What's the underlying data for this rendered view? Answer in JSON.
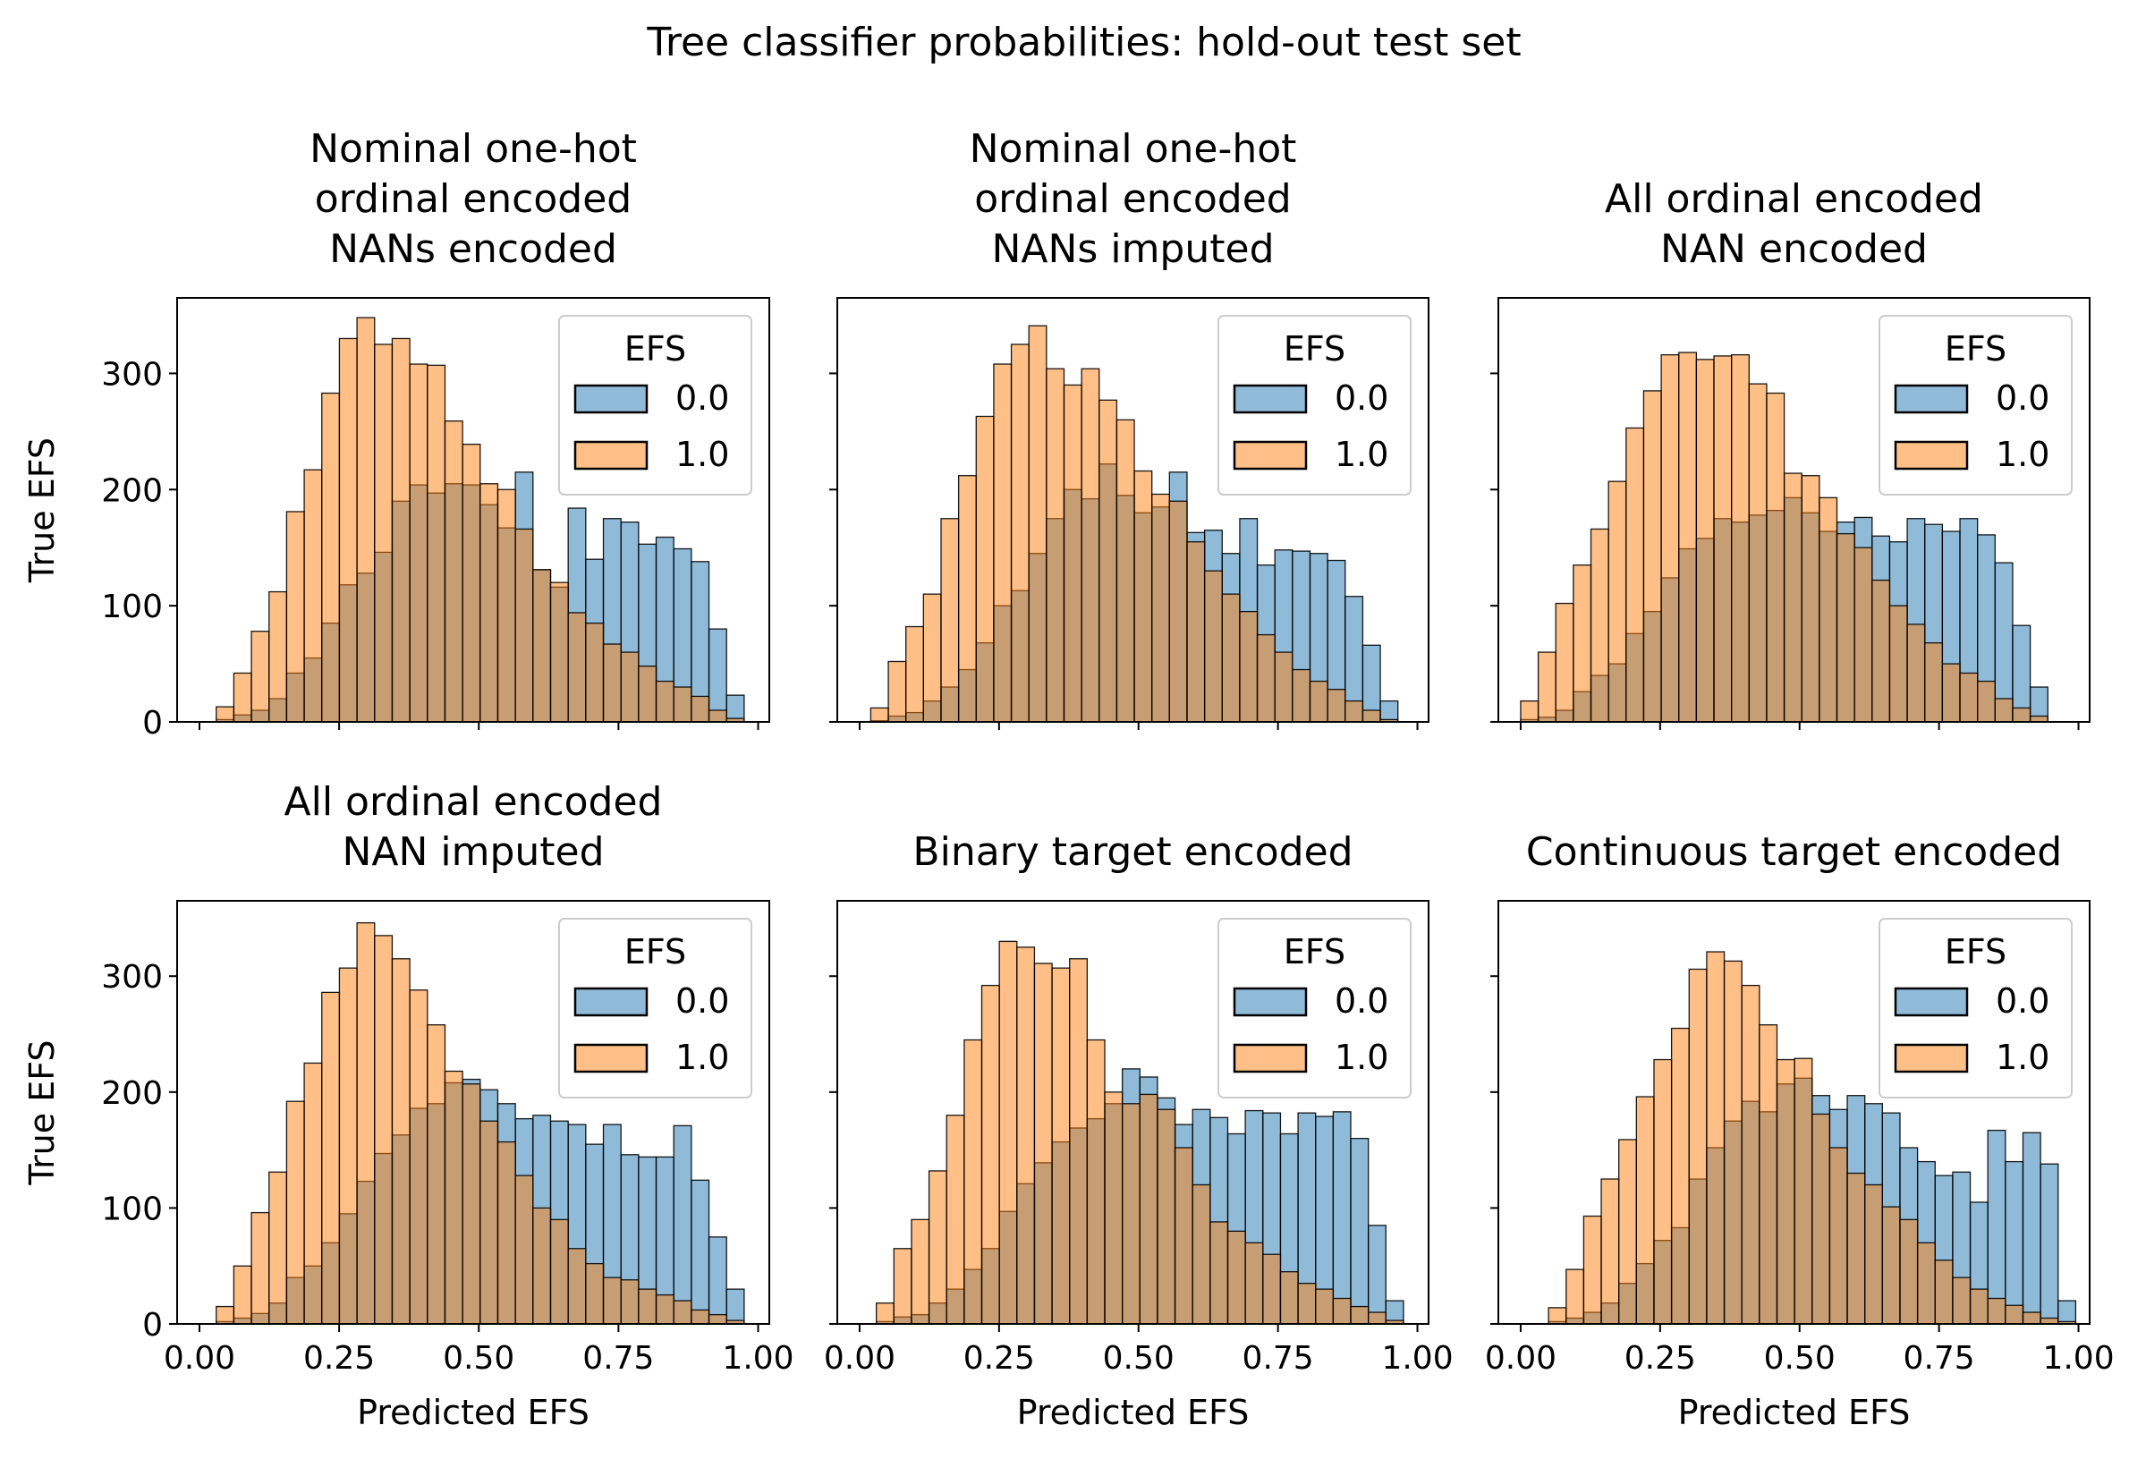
{
  "title": "Tree classifier probabilities: hold-out test set",
  "ylabel": "True EFS",
  "xlabel": "Predicted EFS",
  "legend": {
    "title": "EFS",
    "labels": [
      "0.0",
      "1.0"
    ]
  },
  "colors": {
    "series_0": "#1f77b4",
    "series_1": "#ff7f0e",
    "bar_edge": "#000000"
  },
  "y_ticks": [
    "0",
    "100",
    "200",
    "300"
  ],
  "x_ticks": [
    "0.00",
    "0.25",
    "0.50",
    "0.75",
    "1.00"
  ],
  "chart_data": [
    {
      "type": "bar",
      "title": "Nominal one-hot\nordinal encoded\nNANs encoded",
      "xlabel": "",
      "ylabel": "True EFS",
      "xlim": [
        -0.04,
        1.02
      ],
      "ylim": [
        0,
        365
      ],
      "bin_start": 0.03,
      "bin_width": 0.0315,
      "series": [
        {
          "name": "0.0",
          "values": [
            2,
            6,
            10,
            20,
            42,
            55,
            85,
            118,
            128,
            146,
            190,
            204,
            197,
            205,
            204,
            187,
            167,
            215,
            131,
            116,
            184,
            140,
            175,
            172,
            153,
            159,
            149,
            138,
            80,
            23
          ]
        },
        {
          "name": "1.0",
          "values": [
            13,
            42,
            78,
            112,
            181,
            217,
            283,
            330,
            348,
            325,
            330,
            308,
            307,
            259,
            239,
            205,
            200,
            166,
            131,
            120,
            94,
            85,
            67,
            60,
            48,
            35,
            30,
            22,
            10,
            3
          ]
        }
      ]
    },
    {
      "type": "bar",
      "title": "Nominal one-hot\nordinal encoded\nNANs imputed",
      "xlabel": "",
      "ylabel": "",
      "xlim": [
        -0.04,
        1.02
      ],
      "ylim": [
        0,
        365
      ],
      "bin_start": 0.02,
      "bin_width": 0.0315,
      "series": [
        {
          "name": "0.0",
          "values": [
            1,
            5,
            8,
            18,
            30,
            45,
            68,
            100,
            113,
            145,
            175,
            200,
            192,
            222,
            195,
            180,
            185,
            215,
            163,
            165,
            145,
            175,
            135,
            148,
            147,
            145,
            139,
            108,
            66,
            18
          ]
        },
        {
          "name": "1.0",
          "values": [
            12,
            52,
            82,
            110,
            175,
            212,
            263,
            308,
            325,
            341,
            304,
            290,
            304,
            277,
            260,
            216,
            196,
            190,
            155,
            130,
            110,
            95,
            75,
            60,
            45,
            35,
            28,
            18,
            10,
            2
          ]
        }
      ]
    },
    {
      "type": "bar",
      "title": "All ordinal encoded\nNAN encoded",
      "xlabel": "",
      "ylabel": "",
      "xlim": [
        -0.04,
        1.02
      ],
      "ylim": [
        0,
        365
      ],
      "bin_start": 0.0,
      "bin_width": 0.0315,
      "series": [
        {
          "name": "0.0",
          "values": [
            2,
            4,
            10,
            26,
            40,
            50,
            76,
            95,
            124,
            149,
            158,
            175,
            172,
            178,
            182,
            193,
            180,
            164,
            172,
            176,
            160,
            155,
            175,
            170,
            164,
            175,
            161,
            137,
            83,
            30
          ]
        },
        {
          "name": "1.0",
          "values": [
            18,
            60,
            102,
            135,
            166,
            207,
            253,
            285,
            316,
            318,
            312,
            315,
            316,
            291,
            283,
            214,
            212,
            193,
            162,
            150,
            122,
            100,
            84,
            68,
            50,
            42,
            35,
            20,
            12,
            5
          ]
        }
      ]
    },
    {
      "type": "bar",
      "title": "All ordinal encoded\nNAN imputed",
      "xlabel": "Predicted EFS",
      "ylabel": "True EFS",
      "xlim": [
        -0.04,
        1.02
      ],
      "ylim": [
        0,
        365
      ],
      "bin_start": 0.03,
      "bin_width": 0.0315,
      "series": [
        {
          "name": "0.0",
          "values": [
            2,
            5,
            9,
            18,
            40,
            50,
            70,
            95,
            123,
            147,
            163,
            186,
            190,
            208,
            211,
            202,
            190,
            177,
            180,
            175,
            172,
            155,
            172,
            146,
            144,
            144,
            171,
            124,
            75,
            30
          ]
        },
        {
          "name": "1.0",
          "values": [
            15,
            50,
            96,
            131,
            192,
            225,
            286,
            307,
            346,
            335,
            315,
            288,
            258,
            218,
            207,
            175,
            157,
            128,
            100,
            90,
            65,
            52,
            40,
            38,
            30,
            25,
            20,
            12,
            8,
            3
          ]
        }
      ]
    },
    {
      "type": "bar",
      "title": "Binary target encoded",
      "xlabel": "Predicted EFS",
      "ylabel": "",
      "xlim": [
        -0.04,
        1.02
      ],
      "ylim": [
        0,
        365
      ],
      "bin_start": 0.03,
      "bin_width": 0.0315,
      "series": [
        {
          "name": "0.0",
          "values": [
            2,
            6,
            8,
            18,
            30,
            47,
            65,
            97,
            121,
            139,
            157,
            169,
            177,
            190,
            220,
            213,
            195,
            172,
            185,
            178,
            164,
            184,
            182,
            164,
            182,
            179,
            183,
            160,
            85,
            20
          ]
        },
        {
          "name": "1.0",
          "values": [
            18,
            65,
            90,
            132,
            180,
            245,
            292,
            330,
            325,
            311,
            307,
            315,
            245,
            200,
            190,
            198,
            185,
            152,
            120,
            88,
            80,
            70,
            60,
            45,
            35,
            30,
            22,
            15,
            10,
            3
          ]
        }
      ]
    },
    {
      "type": "bar",
      "title": "Continuous target encoded",
      "xlabel": "Predicted EFS",
      "ylabel": "",
      "xlim": [
        -0.04,
        1.02
      ],
      "ylim": [
        0,
        365
      ],
      "bin_start": 0.05,
      "bin_width": 0.0315,
      "series": [
        {
          "name": "0.0",
          "values": [
            2,
            5,
            10,
            18,
            35,
            52,
            72,
            83,
            125,
            152,
            175,
            192,
            183,
            207,
            212,
            197,
            185,
            197,
            190,
            182,
            152,
            140,
            128,
            131,
            105,
            167,
            140,
            165,
            138,
            20
          ]
        },
        {
          "name": "1.0",
          "values": [
            14,
            47,
            93,
            125,
            159,
            196,
            228,
            255,
            306,
            321,
            313,
            292,
            258,
            228,
            229,
            181,
            152,
            130,
            120,
            101,
            90,
            70,
            55,
            40,
            30,
            22,
            16,
            10,
            5,
            2
          ]
        }
      ]
    }
  ]
}
